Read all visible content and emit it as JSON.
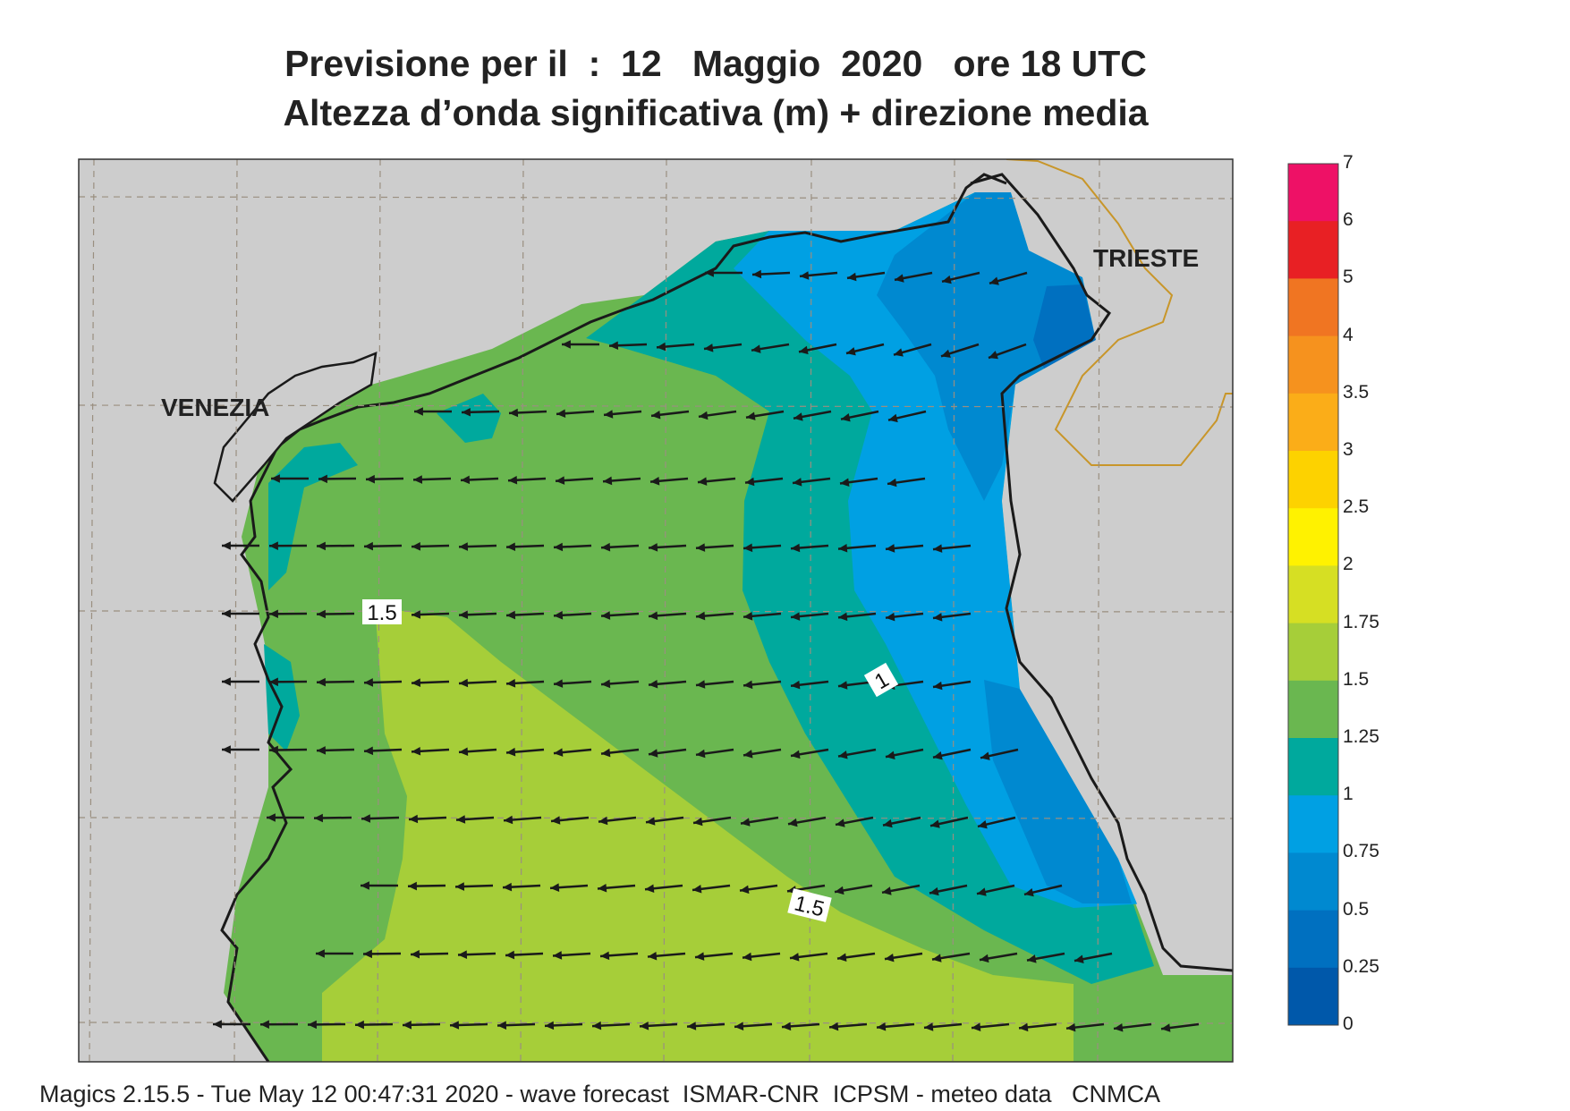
{
  "title": {
    "line1": "Previsione per il  :  12   Maggio  2020   ore 18 UTC",
    "line2": "Altezza d’onda significativa (m) + direzione media"
  },
  "places": {
    "venezia": "VENEZIA",
    "trieste": "TRIESTE"
  },
  "contour_labels": {
    "west": "1.5",
    "south": "1.5",
    "east": "1"
  },
  "legend": {
    "labels": [
      "7",
      "6",
      "5",
      "4",
      "3.5",
      "3",
      "2.5",
      "2",
      "1.75",
      "1.5",
      "1.25",
      "1",
      "0.75",
      "0.5",
      "0.25",
      "0"
    ],
    "colors": [
      "#ee1166",
      "#e82024",
      "#f07522",
      "#f6921e",
      "#fbad18",
      "#fdd200",
      "#fff200",
      "#d6df23",
      "#a6ce39",
      "#6ab750",
      "#00a99d",
      "#00a0e3",
      "#0089d0",
      "#0070c0",
      "#0058aa"
    ]
  },
  "colors": {
    "land": "#cdcdcd",
    "coast": "#1a1a1a",
    "border": "#c8962a",
    "grid": "#9a8f80"
  },
  "footer": "Magics 2.15.5 - Tue May 12 00:47:31 2020 - wave forecast  ISMAR-CNR  ICPSM - meteo data   CNMCA"
}
